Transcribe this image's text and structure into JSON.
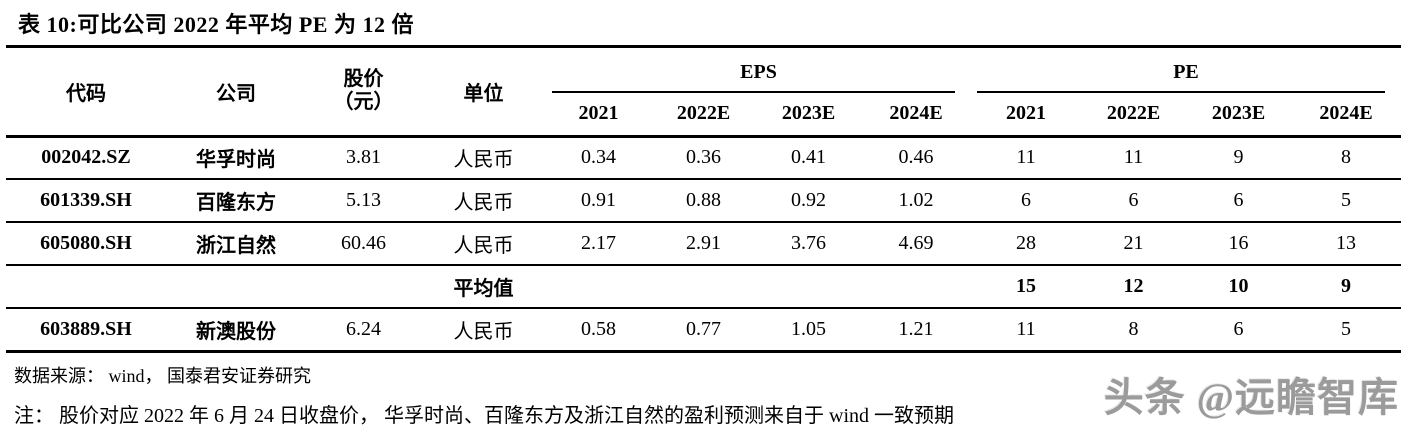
{
  "title": "表 10:可比公司 2022 年平均 PE 为 12 倍",
  "table": {
    "columns": {
      "code": "代码",
      "company": "公司",
      "price_line1": "股价",
      "price_line2": "（元）",
      "unit": "单位",
      "eps_group": "EPS",
      "pe_group": "PE",
      "eps_years": [
        "2021",
        "2022E",
        "2023E",
        "2024E"
      ],
      "pe_years": [
        "2021",
        "2022E",
        "2023E",
        "2024E"
      ]
    },
    "rows": [
      {
        "code": "002042.SZ",
        "company": "华孚时尚",
        "price": "3.81",
        "unit": "人民币",
        "eps": [
          "0.34",
          "0.36",
          "0.41",
          "0.46"
        ],
        "pe": [
          "11",
          "11",
          "9",
          "8"
        ],
        "avg": false
      },
      {
        "code": "601339.SH",
        "company": "百隆东方",
        "price": "5.13",
        "unit": "人民币",
        "eps": [
          "0.91",
          "0.88",
          "0.92",
          "1.02"
        ],
        "pe": [
          "6",
          "6",
          "6",
          "5"
        ],
        "avg": false
      },
      {
        "code": "605080.SH",
        "company": "浙江自然",
        "price": "60.46",
        "unit": "人民币",
        "eps": [
          "2.17",
          "2.91",
          "3.76",
          "4.69"
        ],
        "pe": [
          "28",
          "21",
          "16",
          "13"
        ],
        "avg": false
      },
      {
        "code": "",
        "company": "",
        "price": "",
        "unit": "平均值",
        "eps": [
          "",
          "",
          "",
          ""
        ],
        "pe": [
          "15",
          "12",
          "10",
          "9"
        ],
        "avg": true
      },
      {
        "code": "603889.SH",
        "company": "新澳股份",
        "price": "6.24",
        "unit": "人民币",
        "eps": [
          "0.58",
          "0.77",
          "1.05",
          "1.21"
        ],
        "pe": [
          "11",
          "8",
          "6",
          "5"
        ],
        "avg": false
      }
    ]
  },
  "footer": {
    "source": "数据来源： wind， 国泰君安证券研究",
    "note": "注： 股价对应 2022 年 6 月 24 日收盘价， 华孚时尚、百隆东方及浙江自然的盈利预测来自于 wind 一致预期"
  },
  "watermark": {
    "text": "头条 @远瞻智库",
    "color": "#9b9b9b"
  }
}
